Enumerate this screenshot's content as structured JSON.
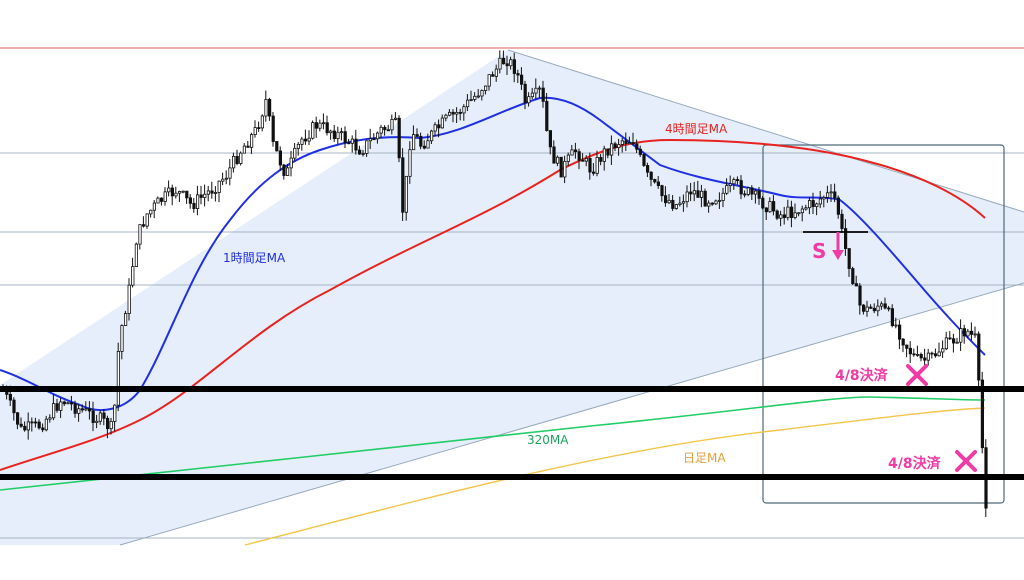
{
  "chart_data": {
    "type": "candlestick",
    "title": "",
    "annotations": {
      "ma_1h": "1時間足MA",
      "ma_4h": "4時間足MA",
      "ma_320": "320MA",
      "ma_daily": "日足MA",
      "short_signal": "S",
      "settle_1": "4/8決済",
      "settle_2": "4/8決済"
    },
    "colors": {
      "ma_1h": "#1f2fe6",
      "ma_4h": "#e8231f",
      "ma_320": "#22cc66",
      "ma_daily": "#f2c64a",
      "annotation": "#f03aa5",
      "horizontal_level": "#000000",
      "wedge_fill": "#dce8f8"
    },
    "grid": true,
    "candles": []
  }
}
